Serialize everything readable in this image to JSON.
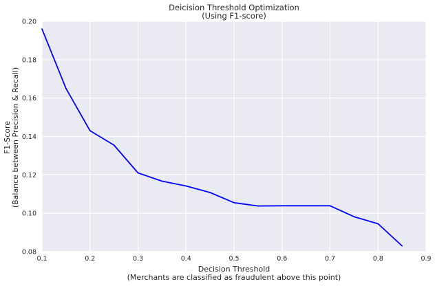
{
  "chart_data": {
    "type": "line",
    "title": "Deicision Threshold Optimization",
    "subtitle": "(Using F1-score)",
    "xlabel": "Decision Threshold",
    "xlabel_note": "(Merchants are classified as fraudulent above this point)",
    "ylabel": "F1-Score",
    "ylabel_note": "(Balance between Precision & Recall)",
    "xlim": [
      0.1,
      0.9
    ],
    "ylim": [
      0.08,
      0.2
    ],
    "x_ticks": [
      "0.1",
      "0.2",
      "0.3",
      "0.4",
      "0.5",
      "0.6",
      "0.7",
      "0.8",
      "0.9"
    ],
    "y_ticks": [
      "0.08",
      "0.10",
      "0.12",
      "0.14",
      "0.16",
      "0.18",
      "0.20"
    ],
    "grid": true,
    "background": "#eaeaf2",
    "grid_color": "#ffffff",
    "series": [
      {
        "color": "#0000ff",
        "x": [
          0.1,
          0.15,
          0.2,
          0.25,
          0.3,
          0.35,
          0.4,
          0.45,
          0.5,
          0.55,
          0.6,
          0.65,
          0.7,
          0.75,
          0.8,
          0.85
        ],
        "y": [
          0.196,
          0.165,
          0.143,
          0.1355,
          0.121,
          0.1167,
          0.1142,
          0.1108,
          0.1055,
          0.1038,
          0.1039,
          0.1039,
          0.1039,
          0.0982,
          0.0945,
          0.083
        ]
      }
    ]
  }
}
